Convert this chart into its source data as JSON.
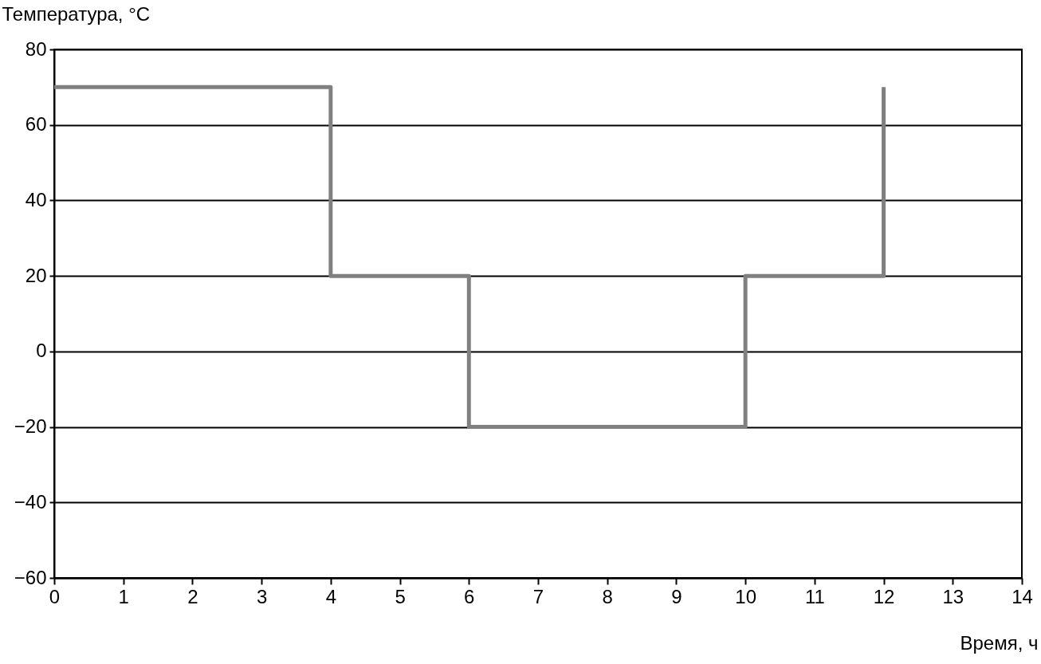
{
  "chart_data": {
    "type": "step",
    "xlabel": "Время, ч",
    "ylabel": "Температура, °C",
    "x": [
      0,
      4,
      6,
      10,
      12
    ],
    "series": [
      {
        "color": "#808080",
        "values": [
          70,
          20,
          -20,
          20,
          70
        ]
      }
    ],
    "xlim": [
      0,
      14
    ],
    "xticks": [
      0,
      1,
      2,
      3,
      4,
      5,
      6,
      7,
      8,
      9,
      10,
      11,
      12,
      13,
      14
    ],
    "ylim": [
      -60,
      80
    ],
    "yticks": [
      -60,
      -40,
      -20,
      0,
      20,
      40,
      60,
      80
    ],
    "grid": "y"
  }
}
